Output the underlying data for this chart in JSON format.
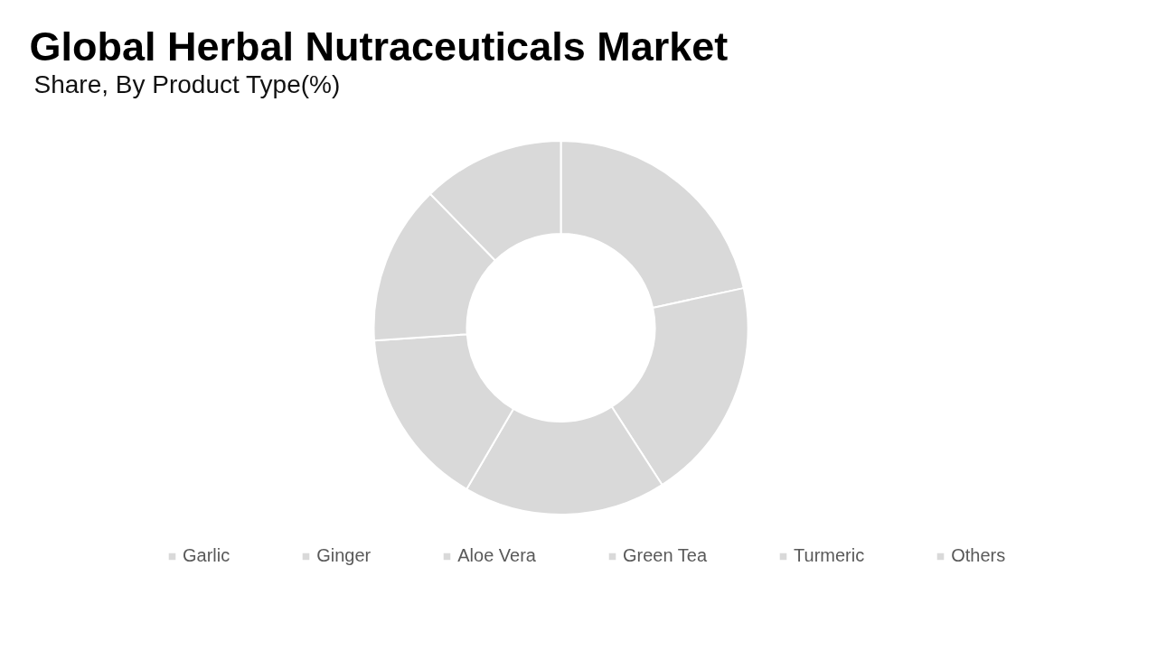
{
  "chart_data": {
    "type": "donut",
    "title": "Global Herbal Nutraceuticals Market",
    "subtitle": "Share, By Product Type(%)",
    "categories": [
      "Garlic",
      "Ginger",
      "Aloe Vera",
      "Green Tea",
      "Turmeric",
      "Others"
    ],
    "values": [
      21.6,
      19.3,
      17.5,
      15.5,
      13.8,
      12.3
    ],
    "colors": [
      "#d9d9d9",
      "#d9d9d9",
      "#d9d9d9",
      "#d9d9d9",
      "#d9d9d9",
      "#d9d9d9"
    ],
    "legend": "bottom"
  }
}
